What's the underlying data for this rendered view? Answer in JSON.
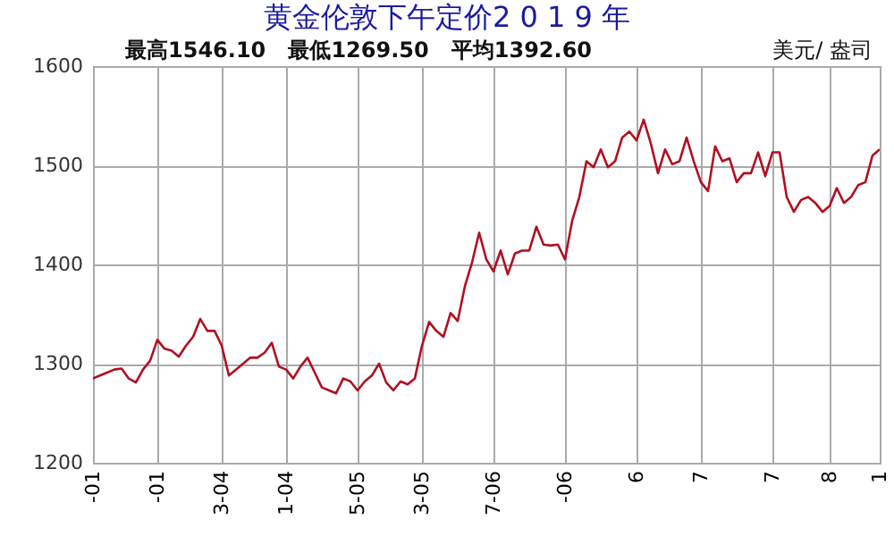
{
  "chart_data": {
    "type": "line",
    "title": "黄金伦敦下午定价2 0 1 9 年",
    "subtitle": "最高1546.10   最低1269.50   平均1392.60",
    "annotations": [
      "美元/ 盎司"
    ],
    "categories": [
      "-01",
      null,
      null,
      null,
      null,
      null,
      null,
      null,
      null,
      "-01",
      null,
      null,
      null,
      null,
      null,
      null,
      null,
      null,
      "3-04",
      null,
      null,
      null,
      null,
      null,
      null,
      null,
      null,
      "1-04",
      null,
      null,
      null,
      null,
      null,
      null,
      null,
      null,
      null,
      "5-05",
      null,
      null,
      null,
      null,
      null,
      null,
      null,
      null,
      "3-05",
      null,
      null,
      null,
      null,
      null,
      null,
      null,
      null,
      null,
      "7-06",
      null,
      null,
      null,
      null,
      null,
      null,
      null,
      null,
      null,
      "-06",
      null,
      null,
      null,
      null,
      null,
      null,
      null,
      null,
      null,
      "6",
      null,
      null,
      null,
      null,
      null,
      null,
      null,
      null,
      "7",
      null,
      null,
      null,
      null,
      null,
      null,
      null,
      null,
      null,
      "7",
      null,
      null,
      null,
      null,
      null,
      null,
      null,
      "8",
      null,
      null,
      null,
      null,
      null,
      null,
      "1"
    ],
    "ylim": [
      1200,
      1600
    ],
    "yticks": [
      1200,
      1300,
      1400,
      1500,
      1600
    ],
    "grid": true,
    "line_style": "solid",
    "series": [
      {
        "color": "#b01020",
        "values": [
          1285,
          1288,
          1291,
          1294,
          1295,
          1285,
          1281,
          1294,
          1303,
          1324,
          1315,
          1313,
          1307,
          1318,
          1327,
          1345,
          1333,
          1333,
          1318,
          1288,
          1294,
          1300,
          1306,
          1306,
          1311,
          1321,
          1297,
          1294,
          1285,
          1297,
          1306,
          1291,
          1276,
          1273,
          1270,
          1285,
          1282,
          1273,
          1282,
          1288,
          1300,
          1281,
          1273,
          1282,
          1279,
          1285,
          1318,
          1342,
          1333,
          1327,
          1351,
          1343,
          1378,
          1402,
          1432,
          1405,
          1393,
          1414,
          1390,
          1411,
          1414,
          1414,
          1438,
          1420,
          1419,
          1420,
          1405,
          1444,
          1468,
          1504,
          1498,
          1516,
          1498,
          1504,
          1528,
          1534,
          1525,
          1546,
          1522,
          1492,
          1516,
          1501,
          1504,
          1528,
          1504,
          1483,
          1474,
          1519,
          1504,
          1507,
          1483,
          1492,
          1492,
          1513,
          1489,
          1513,
          1513,
          1468,
          1453,
          1465,
          1468,
          1462,
          1453,
          1459,
          1477,
          1462,
          1468,
          1480,
          1483,
          1510,
          1516
        ]
      }
    ]
  }
}
